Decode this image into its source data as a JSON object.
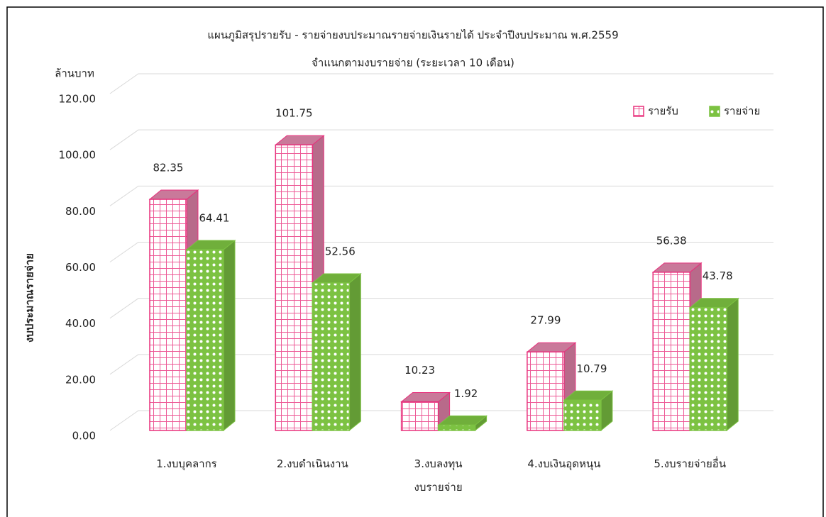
{
  "chart_data": {
    "type": "bar3d",
    "title": "แผนภูมิสรุปรายรับ - รายจ่ายงบประมาณรายจ่ายเงินรายได้ ประจำปีงบประมาณ พ.ศ.2559",
    "subtitle": "จำแนกตามงบรายจ่าย (ระยะเวลา 10 เดือน)",
    "y_unit": "ล้านบาท",
    "y_label": "งบประมาณรายจ่าย",
    "categories": [
      "1.งบบุคลากร",
      "2.งบดำเนินงาน",
      "3.งบลงทุน\nงบรายจ่าย",
      "4.งบเงินอุดหนุน",
      "5.งบรายจ่ายอื่น"
    ],
    "series": [
      {
        "name": "รายรับ",
        "color": "#e8307c",
        "values": [
          82.35,
          101.75,
          10.23,
          27.99,
          56.38
        ]
      },
      {
        "name": "รายจ่าย",
        "color": "#7cc242",
        "values": [
          64.41,
          52.56,
          1.92,
          10.79,
          43.78
        ]
      }
    ],
    "ylim": [
      0,
      120
    ],
    "yticks": [
      {
        "value": 0,
        "label": "0.00"
      },
      {
        "value": 20,
        "label": "20.00"
      },
      {
        "value": 40,
        "label": "40.00"
      },
      {
        "value": 60,
        "label": "60.00"
      },
      {
        "value": 80,
        "label": "80.00"
      },
      {
        "value": 100,
        "label": "100.00"
      },
      {
        "value": 120,
        "label": "120.00"
      }
    ],
    "grid": true,
    "legend": "top-right"
  }
}
